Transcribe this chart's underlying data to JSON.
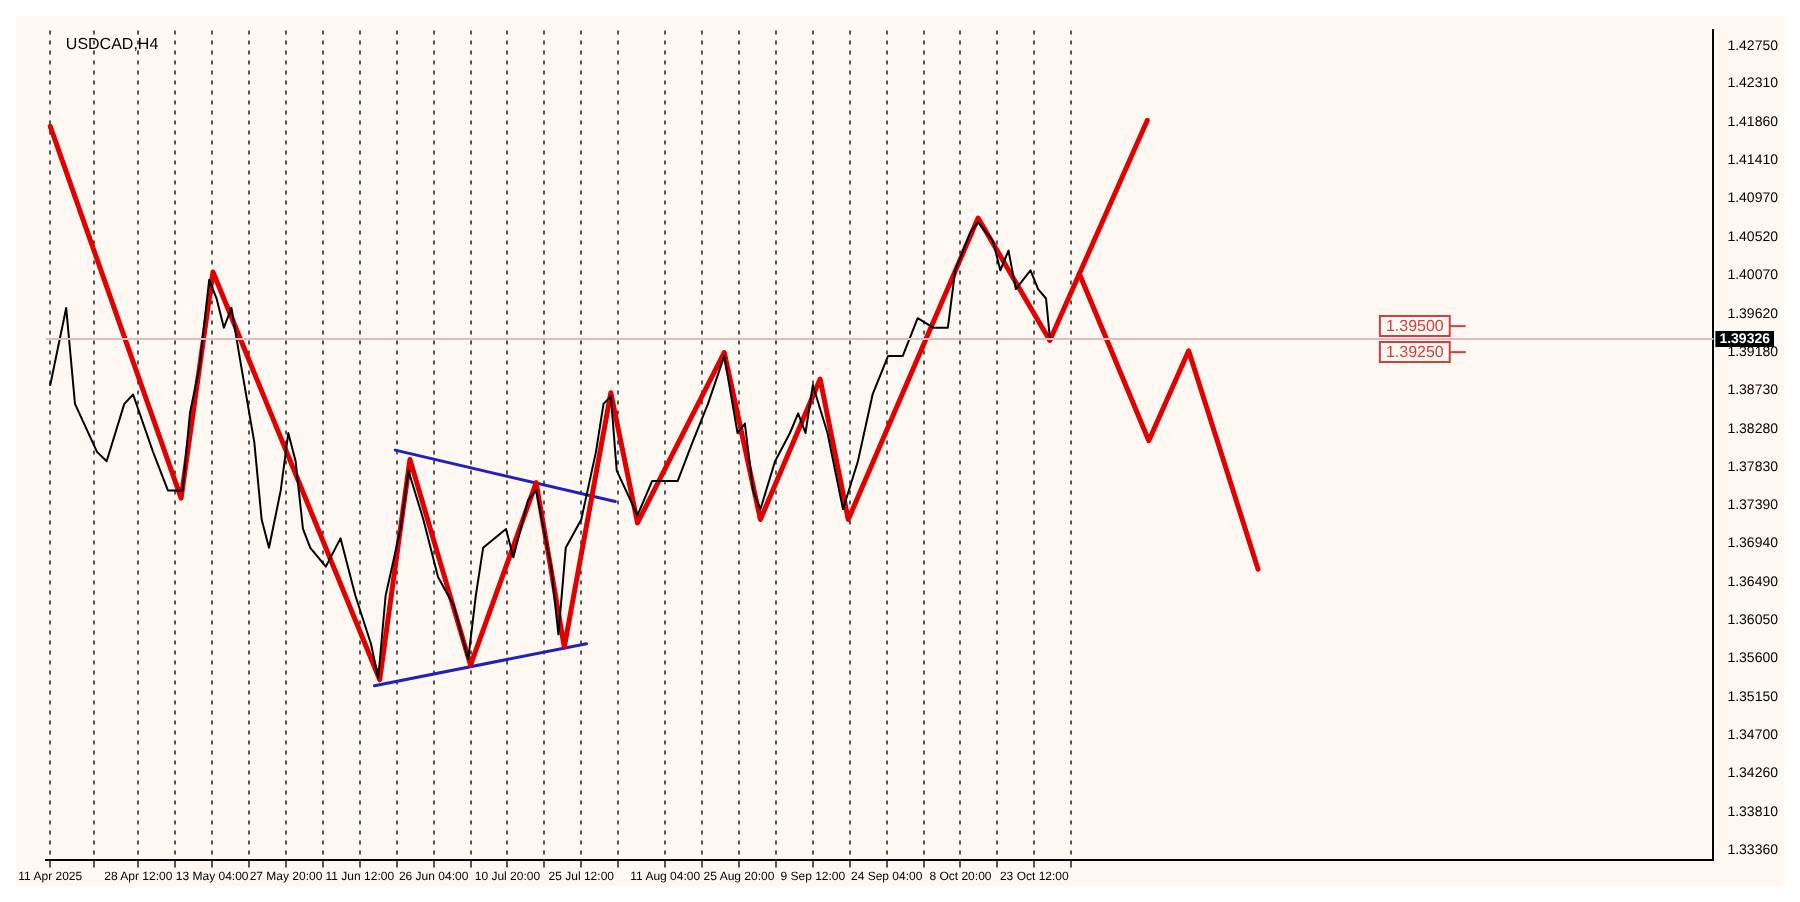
{
  "chart_data": {
    "type": "line",
    "title": "USDCAD,H4",
    "xlim": [
      "2025-04-10T03:00",
      "2026-03-07T10:00"
    ],
    "ylim": [
      1.3325,
      1.4293
    ],
    "xticks": [
      {
        "value": "2025-04-11T00:00",
        "label": "11 Apr 2025"
      },
      {
        "value": "2025-04-19T18:00",
        "label": null
      },
      {
        "value": "2025-04-28T12:00",
        "label": "28 Apr 12:00"
      },
      {
        "value": "2025-05-05T20:00",
        "label": null
      },
      {
        "value": "2025-05-13T04:00",
        "label": "13 May 04:00"
      },
      {
        "value": "2025-05-20T12:00",
        "label": null
      },
      {
        "value": "2025-05-27T20:00",
        "label": "27 May 20:00"
      },
      {
        "value": "2025-06-04T04:00",
        "label": null
      },
      {
        "value": "2025-06-11T12:00",
        "label": "11 Jun 12:00"
      },
      {
        "value": "2025-06-18T20:00",
        "label": null
      },
      {
        "value": "2025-06-26T04:00",
        "label": "26 Jun 04:00"
      },
      {
        "value": "2025-07-03T12:00",
        "label": null
      },
      {
        "value": "2025-07-10T20:00",
        "label": "10 Jul 20:00"
      },
      {
        "value": "2025-07-18T04:00",
        "label": null
      },
      {
        "value": "2025-07-25T12:00",
        "label": "25 Jul 12:00"
      },
      {
        "value": "2025-08-01T20:00",
        "label": null
      },
      {
        "value": "2025-08-11T04:00",
        "label": "11 Aug 04:00"
      },
      {
        "value": "2025-08-18T12:00",
        "label": null
      },
      {
        "value": "2025-08-25T20:00",
        "label": "25 Aug 20:00"
      },
      {
        "value": "2025-09-02T04:00",
        "label": null
      },
      {
        "value": "2025-09-09T12:00",
        "label": "9 Sep 12:00"
      },
      {
        "value": "2025-09-16T20:00",
        "label": null
      },
      {
        "value": "2025-09-24T04:00",
        "label": "24 Sep 04:00"
      },
      {
        "value": "2025-10-01T12:00",
        "label": null
      },
      {
        "value": "2025-10-08T20:00",
        "label": "8 Oct 20:00"
      },
      {
        "value": "2025-10-16T04:00",
        "label": null
      },
      {
        "value": "2025-10-23T12:00",
        "label": "23 Oct 12:00"
      },
      {
        "value": "2025-10-30T20:00",
        "label": null
      }
    ],
    "yticks": [
      {
        "value": 1.4275,
        "label": "1.42750"
      },
      {
        "value": 1.4231,
        "label": "1.42310"
      },
      {
        "value": 1.4186,
        "label": "1.41860"
      },
      {
        "value": 1.4141,
        "label": "1.41410"
      },
      {
        "value": 1.4097,
        "label": "1.40970"
      },
      {
        "value": 1.4052,
        "label": "1.40520"
      },
      {
        "value": 1.4007,
        "label": "1.40070"
      },
      {
        "value": 1.3962,
        "label": "1.39620"
      },
      {
        "value": 1.3918,
        "label": "1.39180"
      },
      {
        "value": 1.3873,
        "label": "1.38730"
      },
      {
        "value": 1.3828,
        "label": "1.38280"
      },
      {
        "value": 1.3783,
        "label": "1.37830"
      },
      {
        "value": 1.3739,
        "label": "1.37390"
      },
      {
        "value": 1.3694,
        "label": "1.36940"
      },
      {
        "value": 1.3649,
        "label": "1.36490"
      },
      {
        "value": 1.3605,
        "label": "1.36050"
      },
      {
        "value": 1.356,
        "label": "1.35600"
      },
      {
        "value": 1.3515,
        "label": "1.35150"
      },
      {
        "value": 1.347,
        "label": "1.34700"
      },
      {
        "value": 1.3426,
        "label": "1.34260"
      },
      {
        "value": 1.3381,
        "label": "1.33810"
      },
      {
        "value": 1.3336,
        "label": "1.33360"
      }
    ],
    "grid": "x",
    "legend": false,
    "marker": "none",
    "ref_lines": [
      {
        "axis": "y",
        "value": 1.39326,
        "label": "1.39326",
        "color": "#d8c0c0"
      }
    ],
    "annotations": [
      "1.39500",
      "1.39250"
    ],
    "series": [
      {
        "color": "#000000",
        "x": [
          "2025-04-11T00:00",
          "2025-04-14T04:00",
          "2025-04-15T22:00",
          "2025-04-20T07:00",
          "2025-04-22T05:00",
          "2025-04-25T17:00",
          "2025-04-27T11:00",
          "2025-05-01T10:00",
          "2025-05-04T09:00",
          "2025-05-07T07:00",
          "2025-05-08T18:00",
          "2025-05-10T16:00",
          "2025-05-12T14:00",
          "2025-05-14T01:00",
          "2025-05-15T12:00",
          "2025-05-17T00:00",
          "2025-05-18T14:00",
          "2025-05-21T13:00",
          "2025-05-23T00:00",
          "2025-05-24T11:00",
          "2025-05-26T19:00",
          "2025-05-28T07:00",
          "2025-05-29T18:00",
          "2025-05-31T05:00",
          "2025-06-01T16:00",
          "2025-06-04T18:00",
          "2025-06-07T16:00",
          "2025-06-10T15:00",
          "2025-06-13T17:00",
          "2025-06-15T04:00",
          "2025-06-16T15:00",
          "2025-06-19T14:00",
          "2025-06-21T04:00",
          "2025-06-24T03:00",
          "2025-06-27T01:00",
          "2025-06-30T03:00",
          "2025-07-03T01:00",
          "2025-07-04T13:00",
          "2025-07-06T00:00",
          "2025-07-10T13:00",
          "2025-07-12T00:00",
          "2025-07-14T23:00",
          "2025-07-16T13:00",
          "2025-07-19T12:00",
          "2025-07-20T23:00",
          "2025-07-22T10:00",
          "2025-07-25T12:00",
          "2025-07-28T10:00",
          "2025-07-29T22:00",
          "2025-07-31T09:00",
          "2025-08-01T13:00",
          "2025-08-05T16:00",
          "2025-08-08T14:00",
          "2025-08-13T16:00",
          "2025-08-16T14:00",
          "2025-08-19T16:00",
          "2025-08-22T22:00",
          "2025-08-25T13:00",
          "2025-08-27T00:00",
          "2025-08-28T15:00",
          "2025-08-30T02:00",
          "2025-09-02T00:00",
          "2025-09-04T23:00",
          "2025-09-06T14:00",
          "2025-09-08T01:00",
          "2025-09-09T12:00",
          "2025-09-12T10:00",
          "2025-09-15T12:00",
          "2025-09-18T11:00",
          "2025-09-21T09:00",
          "2025-09-24T11:00",
          "2025-09-27T09:00",
          "2025-09-30T08:00",
          "2025-10-03T10:00",
          "2025-10-06T08:00",
          "2025-10-07T19:00",
          "2025-10-10T21:00",
          "2025-10-12T08:00",
          "2025-10-15T07:00",
          "2025-10-16T18:00",
          "2025-10-18T09:00",
          "2025-10-19T20:00",
          "2025-10-22T18:00",
          "2025-10-24T06:00",
          "2025-10-25T20:00",
          "2025-10-26T14:00"
        ],
        "values": [
          1.3879,
          1.3969,
          1.3857,
          1.3801,
          1.379,
          1.3857,
          1.3868,
          1.3801,
          1.3756,
          1.3756,
          1.3846,
          1.3901,
          1.4002,
          1.398,
          1.3946,
          1.3969,
          1.3913,
          1.3812,
          1.3722,
          1.3689,
          1.3756,
          1.3823,
          1.379,
          1.3711,
          1.3689,
          1.3667,
          1.37,
          1.3633,
          1.3577,
          1.3537,
          1.3633,
          1.3711,
          1.3779,
          1.3722,
          1.3655,
          1.3622,
          1.3559,
          1.3633,
          1.3689,
          1.3711,
          1.3678,
          1.3745,
          1.3756,
          1.3667,
          1.3588,
          1.3689,
          1.3722,
          1.3801,
          1.3857,
          1.3866,
          1.3779,
          1.3727,
          1.3767,
          1.3767,
          1.3812,
          1.3857,
          1.3913,
          1.3823,
          1.3834,
          1.3756,
          1.3734,
          1.379,
          1.3823,
          1.3846,
          1.3823,
          1.3879,
          1.3823,
          1.3734,
          1.379,
          1.3868,
          1.3913,
          1.3913,
          1.3957,
          1.3946,
          1.3946,
          1.4013,
          1.4058,
          1.4069,
          1.4047,
          1.4013,
          1.4036,
          1.3991,
          1.4013,
          1.3991,
          1.398,
          1.3935
        ]
      },
      {
        "color": "#e00000",
        "x": [
          "2025-04-11T00:00",
          "2025-05-07T00:00",
          "2025-05-13T08:00",
          "2025-06-15T11:00",
          "2025-06-21T11:00",
          "2025-07-03T12:00",
          "2025-07-16T13:00",
          "2025-07-22T03:00",
          "2025-07-31T09:00",
          "2025-08-05T16:00",
          "2025-08-22T22:00",
          "2025-08-30T02:00",
          "2025-09-10T23:00",
          "2025-09-16T13:00",
          "2025-10-12T08:00",
          "2025-10-26T14:00",
          "2025-11-14T23:00"
        ],
        "values": [
          1.4181,
          1.3747,
          1.4011,
          1.3535,
          1.3792,
          1.3552,
          1.3765,
          1.3573,
          1.387,
          1.3718,
          1.3917,
          1.3722,
          1.3886,
          1.3722,
          1.4074,
          1.3931,
          1.4188
        ]
      },
      {
        "color": "#e00000",
        "x": [
          "2025-11-01T11:00",
          "2025-11-15T06:00",
          "2025-11-23T04:00",
          "2025-12-06T23:00"
        ],
        "values": [
          1.4009,
          1.3814,
          1.3919,
          1.3664
        ]
      },
      {
        "color": "#2020c0",
        "x": [
          "2025-06-18T13:00",
          "2025-08-01T06:00"
        ],
        "values": [
          1.3803,
          1.3743
        ]
      },
      {
        "color": "#2020c0",
        "x": [
          "2025-06-14T10:00",
          "2025-07-26T13:00"
        ],
        "values": [
          1.3528,
          1.3577
        ]
      }
    ]
  }
}
